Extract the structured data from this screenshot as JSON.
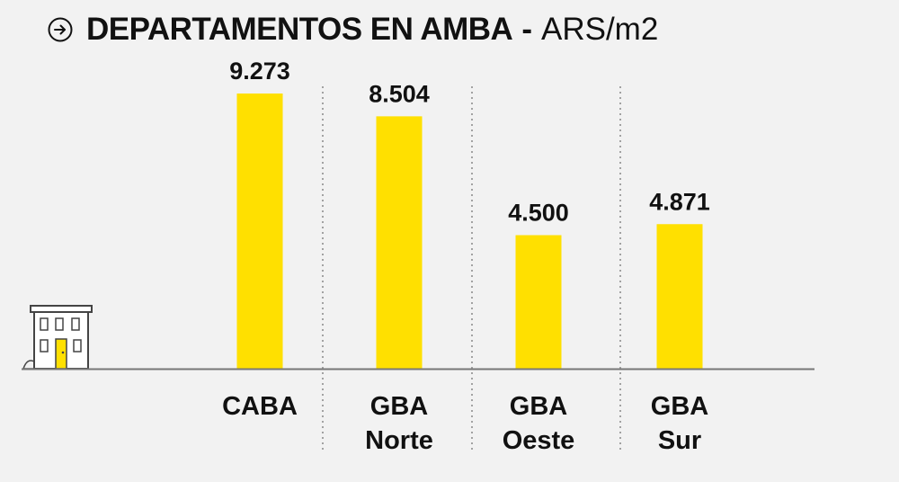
{
  "header": {
    "title": "DEPARTAMENTOS EN AMBA",
    "separator": "-",
    "unit": "ARS/m2",
    "icon": "arrow-right-circle-icon"
  },
  "colors": {
    "background": "#f2f2f2",
    "bar": "#ffe000",
    "text": "#111111",
    "axis": "#777777",
    "divider": "#888888"
  },
  "chart_data": {
    "type": "bar",
    "title": "DEPARTAMENTOS EN AMBA - ARS/m2",
    "xlabel": "",
    "ylabel": "",
    "categories": [
      [
        "CABA"
      ],
      [
        "GBA",
        "Norte"
      ],
      [
        "GBA",
        "Oeste"
      ],
      [
        "GBA",
        "Sur"
      ]
    ],
    "values": [
      9273,
      8504,
      4500,
      4871
    ],
    "value_labels": [
      "9.273",
      "8.504",
      "4.500",
      "4.871"
    ],
    "ylim": [
      0,
      10000
    ],
    "grid": false,
    "legend": "none",
    "decoration": "building-icon"
  }
}
